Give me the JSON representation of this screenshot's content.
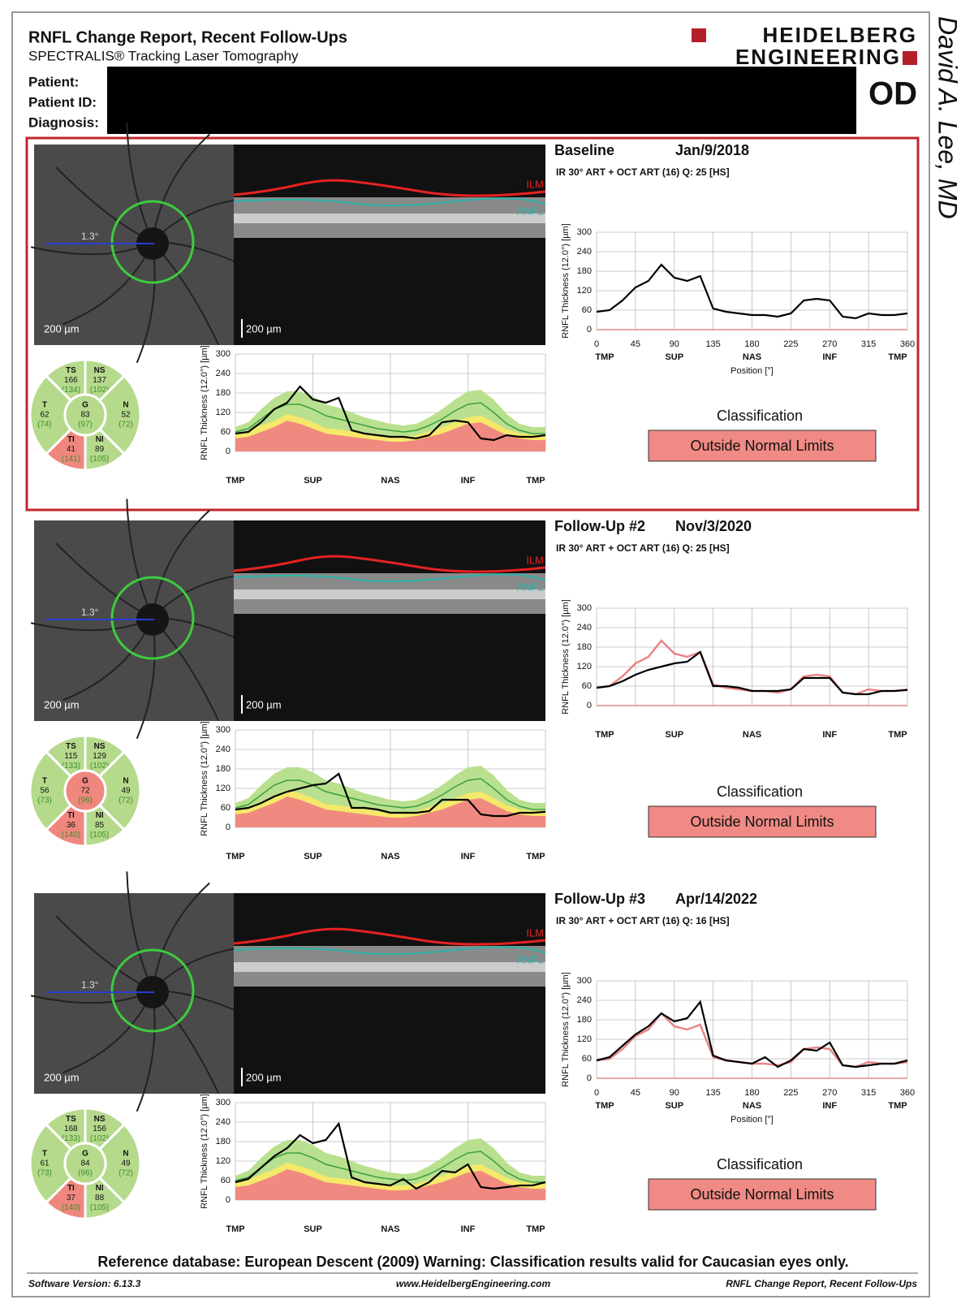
{
  "header": {
    "title": "RNFL Change Report, Recent Follow-Ups",
    "subtitle": "SPECTRALIS® Tracking Laser Tomography",
    "brand_line1": "HEIDELBERG",
    "brand_line2": "ENGINEERING",
    "eye": "OD",
    "fields": [
      "Patient:",
      "Patient ID:",
      "Diagnosis:"
    ]
  },
  "side_note": "David A. Lee, MD",
  "thickness_axis": {
    "label": "RNFL Thickness (12.0°) [µm]",
    "ylim": [
      0,
      300
    ],
    "yticks": [
      0,
      60,
      120,
      180,
      240,
      300
    ]
  },
  "position_axis": {
    "label": "Position [°]",
    "xlim": [
      0,
      360
    ],
    "xticks": [
      0,
      45,
      90,
      135,
      180,
      225,
      270,
      315,
      360
    ],
    "regions": [
      {
        "value": 0,
        "label": "TMP"
      },
      {
        "value": 90,
        "label": "SUP"
      },
      {
        "value": 180,
        "label": "NAS"
      },
      {
        "value": 270,
        "label": "INF"
      },
      {
        "value": 360,
        "label": "TMP"
      }
    ],
    "positions": [
      0,
      15,
      30,
      45,
      60,
      75,
      90,
      105,
      120,
      135,
      150,
      165,
      180,
      195,
      210,
      225,
      240,
      255,
      270,
      285,
      300,
      315,
      330,
      345,
      360
    ]
  },
  "reference": {
    "within_normal": [
      75,
      90,
      130,
      165,
      185,
      185,
      170,
      145,
      135,
      120,
      105,
      95,
      85,
      80,
      85,
      105,
      130,
      160,
      185,
      190,
      160,
      115,
      85,
      75,
      75
    ],
    "borderline": [
      58,
      62,
      80,
      95,
      115,
      105,
      90,
      72,
      68,
      62,
      56,
      50,
      45,
      45,
      50,
      62,
      75,
      90,
      105,
      110,
      90,
      68,
      56,
      52,
      52
    ],
    "outside_normal": [
      40,
      45,
      60,
      75,
      95,
      85,
      70,
      55,
      50,
      45,
      40,
      35,
      30,
      30,
      35,
      45,
      55,
      70,
      85,
      90,
      70,
      50,
      40,
      35,
      35
    ],
    "normal_mean": [
      60,
      70,
      100,
      130,
      145,
      145,
      130,
      110,
      100,
      90,
      80,
      70,
      65,
      60,
      65,
      80,
      100,
      125,
      145,
      150,
      120,
      85,
      65,
      55,
      55
    ]
  },
  "exams": [
    {
      "title": "Baseline",
      "date": "Jan/9/2018",
      "scan_info": "IR 30° ART + OCT ART (16) Q: 25 [HS]",
      "show_position_ticks": true,
      "image_labels": {
        "angle": "1.3°",
        "scale_fundus": "200 µm",
        "scale_oct": "200 µm",
        "ilm": "ILM",
        "rnfl": "RNFL"
      },
      "sectors": [
        {
          "label": "TS",
          "value": "166",
          "normal": "(134)",
          "status": "normal"
        },
        {
          "label": "NS",
          "value": "137",
          "normal": "(102)",
          "status": "normal"
        },
        {
          "label": "N",
          "value": "52",
          "normal": "(72)",
          "status": "normal"
        },
        {
          "label": "NI",
          "value": "89",
          "normal": "(105)",
          "status": "normal"
        },
        {
          "label": "TI",
          "value": "41",
          "normal": "(141)",
          "status": "outside"
        },
        {
          "label": "T",
          "value": "62",
          "normal": "(74)",
          "status": "normal"
        },
        {
          "label": "G",
          "value": "83",
          "normal": "(97)",
          "status": "normal"
        }
      ],
      "thickness": [
        55,
        60,
        90,
        130,
        150,
        200,
        160,
        150,
        165,
        65,
        55,
        50,
        45,
        45,
        40,
        50,
        90,
        95,
        90,
        40,
        35,
        50,
        45,
        45,
        50
      ],
      "classification_label": "Classification",
      "classification": "Outside Normal Limits"
    },
    {
      "title": "Follow-Up #2",
      "date": "Nov/3/2020",
      "scan_info": "IR 30° ART + OCT ART (16) Q: 25 [HS]",
      "show_position_ticks": false,
      "image_labels": {
        "angle": "1.3°",
        "scale_fundus": "200 µm",
        "scale_oct": "200 µm",
        "ilm": "ILM",
        "rnfl": "RNFL"
      },
      "sectors": [
        {
          "label": "TS",
          "value": "115",
          "normal": "(133)",
          "status": "normal"
        },
        {
          "label": "NS",
          "value": "129",
          "normal": "(102)",
          "status": "normal"
        },
        {
          "label": "N",
          "value": "49",
          "normal": "(72)",
          "status": "normal"
        },
        {
          "label": "NI",
          "value": "85",
          "normal": "(105)",
          "status": "normal"
        },
        {
          "label": "TI",
          "value": "36",
          "normal": "(140)",
          "status": "outside"
        },
        {
          "label": "T",
          "value": "56",
          "normal": "(73)",
          "status": "normal"
        },
        {
          "label": "G",
          "value": "72",
          "normal": "(96)",
          "status": "outside"
        }
      ],
      "thickness": [
        55,
        60,
        75,
        95,
        110,
        120,
        130,
        135,
        165,
        60,
        60,
        55,
        45,
        45,
        45,
        50,
        85,
        85,
        85,
        40,
        35,
        35,
        45,
        45,
        48
      ],
      "classification_label": "Classification",
      "classification": "Outside Normal Limits"
    },
    {
      "title": "Follow-Up #3",
      "date": "Apr/14/2022",
      "scan_info": "IR 30° ART + OCT ART (16) Q: 16 [HS]",
      "show_position_ticks": true,
      "image_labels": {
        "angle": "1.3°",
        "scale_fundus": "200 µm",
        "scale_oct": "200 µm",
        "ilm": "ILM",
        "rnfl": "RNFL"
      },
      "sectors": [
        {
          "label": "TS",
          "value": "168",
          "normal": "(133)",
          "status": "normal"
        },
        {
          "label": "NS",
          "value": "156",
          "normal": "(102)",
          "status": "normal"
        },
        {
          "label": "N",
          "value": "49",
          "normal": "(72)",
          "status": "normal"
        },
        {
          "label": "NI",
          "value": "88",
          "normal": "(105)",
          "status": "normal"
        },
        {
          "label": "TI",
          "value": "37",
          "normal": "(140)",
          "status": "outside"
        },
        {
          "label": "T",
          "value": "61",
          "normal": "(73)",
          "status": "normal"
        },
        {
          "label": "G",
          "value": "84",
          "normal": "(96)",
          "status": "normal"
        }
      ],
      "thickness": [
        55,
        65,
        100,
        135,
        160,
        200,
        175,
        185,
        235,
        70,
        55,
        50,
        45,
        65,
        35,
        55,
        90,
        85,
        110,
        40,
        35,
        40,
        45,
        45,
        55
      ],
      "classification_label": "Classification",
      "classification": "Outside Normal Limits"
    }
  ],
  "footer": {
    "note": "Reference database: European Descent (2009)   Warning: Classification results valid for Caucasian eyes only.",
    "software": "Software Version: 6.13.3",
    "website": "www.HeidelbergEngineering.com",
    "report": "RNFL Change Report, Recent Follow-Ups"
  }
}
